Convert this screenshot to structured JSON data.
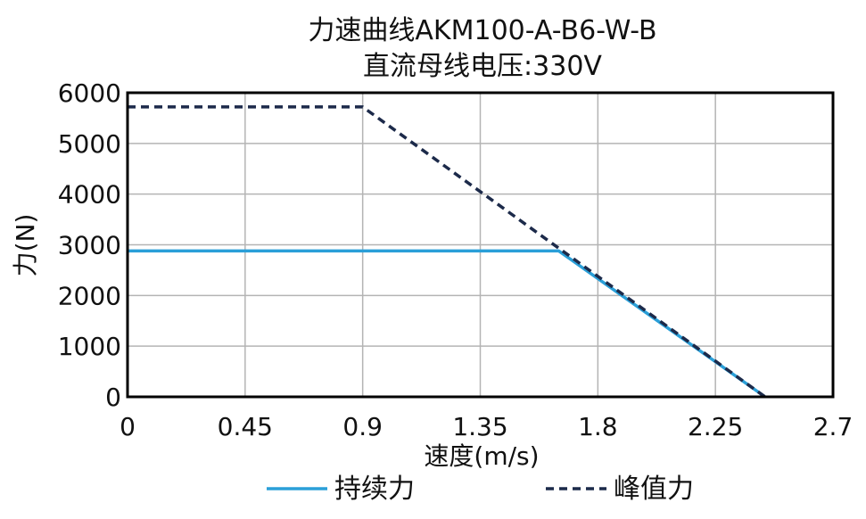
{
  "chart_data": {
    "type": "line",
    "title": "力速曲线AKM100-A-B6-W-B",
    "subtitle": "直流母线电压:330V",
    "xlabel": "速度(m/s)",
    "ylabel": "力(N)",
    "xlim": [
      0,
      2.7
    ],
    "ylim": [
      0,
      6000
    ],
    "xticks": [
      "0",
      "0.45",
      "0.9",
      "1.35",
      "1.8",
      "2.25",
      "2.7"
    ],
    "xtick_values": [
      0,
      0.45,
      0.9,
      1.35,
      1.8,
      2.25,
      2.7
    ],
    "yticks": [
      "0",
      "1000",
      "2000",
      "3000",
      "4000",
      "5000",
      "6000"
    ],
    "ytick_values": [
      0,
      1000,
      2000,
      3000,
      4000,
      5000,
      6000
    ],
    "grid": true,
    "legend_position": "bottom",
    "series": [
      {
        "name": "持续力",
        "style": "solid",
        "color": "#2a9fd8",
        "x": [
          0,
          1.65,
          2.44
        ],
        "y": [
          2880,
          2880,
          0
        ]
      },
      {
        "name": "峰值力",
        "style": "dashed",
        "color": "#1c2a4a",
        "x": [
          0,
          0.9,
          2.44
        ],
        "y": [
          5720,
          5720,
          0
        ]
      }
    ]
  }
}
